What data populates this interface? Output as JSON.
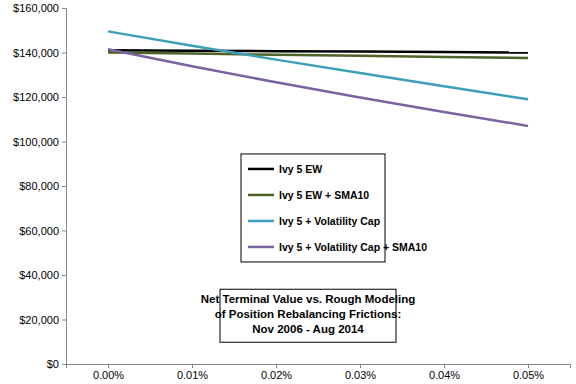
{
  "chart_data": {
    "type": "line",
    "title": "Net Terminal Value vs. Rough Modeling\nof Position Rebalancing Frictions:\nNov 2006 - Aug 2014",
    "categories": [
      "0.00%",
      "0.01%",
      "0.02%",
      "0.03%",
      "0.04%",
      "0.05%"
    ],
    "series": [
      {
        "name": "Ivy 5 EW",
        "color": "#000000",
        "values": [
          141000,
          140800,
          140600,
          140400,
          140200,
          140000
        ]
      },
      {
        "name": "Ivy 5 EW + SMA10",
        "color": "#4f6228",
        "values": [
          140000,
          139500,
          139000,
          138500,
          138000,
          137500
        ]
      },
      {
        "name": "Ivy 5 + Volatility Cap",
        "color": "#3d9fbb",
        "values": [
          149500,
          143000,
          136800,
          130800,
          124800,
          119000
        ]
      },
      {
        "name": "Ivy 5 + Volatility Cap + SMA10",
        "color": "#7a63a0",
        "values": [
          141500,
          133800,
          126600,
          119800,
          113300,
          107000
        ]
      }
    ],
    "ylim": [
      0,
      160000
    ],
    "yticks": [
      {
        "value": 0,
        "label": "$0"
      },
      {
        "value": 20000,
        "label": "$20,000"
      },
      {
        "value": 40000,
        "label": "$40,000"
      },
      {
        "value": 60000,
        "label": "$60,000"
      },
      {
        "value": 80000,
        "label": "$80,000"
      },
      {
        "value": 100000,
        "label": "$100,000"
      },
      {
        "value": 120000,
        "label": "$120,000"
      },
      {
        "value": 140000,
        "label": "$140,000"
      },
      {
        "value": 160000,
        "label": "$160,000"
      }
    ],
    "grid": false,
    "legend": "center"
  }
}
